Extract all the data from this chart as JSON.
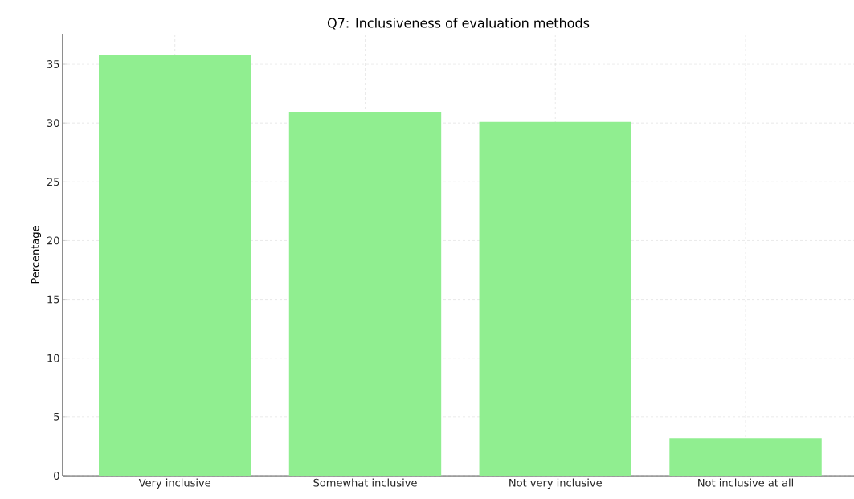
{
  "chart_data": {
    "type": "bar",
    "title": "Q7: Inclusiveness of evaluation methods",
    "ylabel": "Percentage",
    "categories": [
      "Very inclusive",
      "Somewhat inclusive",
      "Not very inclusive",
      "Not inclusive at all"
    ],
    "values": [
      35.8,
      30.9,
      30.1,
      3.2
    ],
    "color": "#90ee90",
    "ylim": [
      0,
      37.6
    ],
    "yticks": [
      0,
      5,
      10,
      15,
      20,
      25,
      30,
      35
    ],
    "grid": true
  }
}
